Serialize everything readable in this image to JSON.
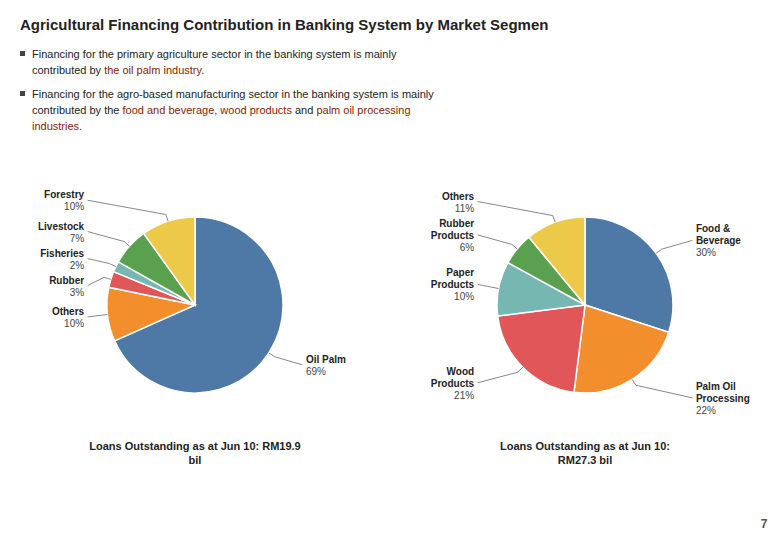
{
  "title": "Agricultural Financing Contribution in Banking System by Market Segmen",
  "annotations": [
    {
      "lines": [
        [
          {
            "text": "Financing for the primary agriculture sector in the banking system is mainly"
          }
        ],
        [
          {
            "text": "contributed by "
          },
          {
            "text": "the oil palm industry",
            "color": "#8B1A00"
          },
          {
            "text": "."
          }
        ]
      ]
    },
    {
      "lines": [
        [
          {
            "text": "Financing for the agro-based manufacturing sector in the banking system is mainly"
          }
        ],
        [
          {
            "text": "contributed by the "
          },
          {
            "text": "food and beverage, wood products",
            "color": "#8B1A00"
          },
          {
            "text": " and "
          },
          {
            "text": "palm oil processing",
            "color": "#8B1A00"
          }
        ],
        [
          {
            "text": "industries",
            "color": "#8B1A00"
          },
          {
            "text": "."
          }
        ]
      ]
    }
  ],
  "page_number": "7",
  "chart_data": [
    {
      "type": "pie",
      "subtitle": "Loans Outstanding as at Jun 10: RM19.9\nbil",
      "categories": [
        "Oil Palm",
        "Others",
        "Rubber",
        "Fisheries",
        "Livestock",
        "Forestry"
      ],
      "values": [
        69,
        10,
        3,
        2,
        7,
        10
      ],
      "value_labels": [
        "69%",
        "10%",
        "3%",
        "2%",
        "7%",
        "10%"
      ],
      "data_labels": true
    },
    {
      "type": "pie",
      "subtitle": "Loans Outstanding as at Jun 10:\nRM27.3 bil",
      "categories": [
        "Food &\nBeverage",
        "Palm Oil\nProcessing",
        "Wood\nProducts",
        "Paper\nProducts",
        "Rubber\nProducts",
        "Others"
      ],
      "values": [
        30,
        22,
        21,
        10,
        6,
        11
      ],
      "value_labels": [
        "30%",
        "22%",
        "21%",
        "10%",
        "6%",
        "11%"
      ],
      "data_labels": true
    }
  ]
}
